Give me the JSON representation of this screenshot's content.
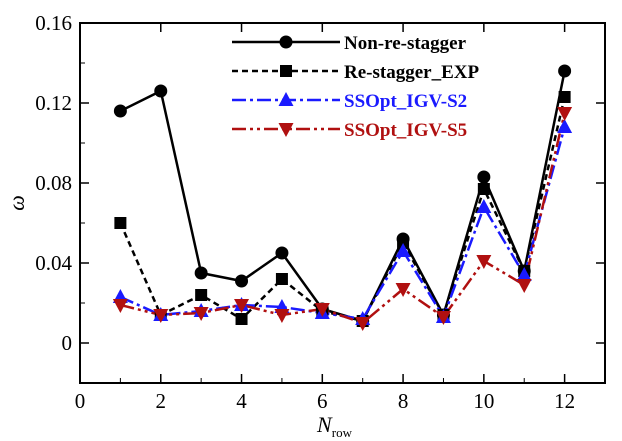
{
  "chart_data": {
    "type": "line",
    "title": "",
    "xlabel": "N",
    "xlabel_subscript": "row",
    "ylabel": "ω",
    "xlim": [
      0,
      13
    ],
    "ylim": [
      -0.02,
      0.16
    ],
    "xticks": [
      0,
      2,
      4,
      6,
      8,
      10,
      12
    ],
    "yticks": [
      0,
      0.04,
      0.08,
      0.12,
      0.16
    ],
    "xtick_labels": [
      "0",
      "2",
      "4",
      "6",
      "8",
      "10",
      "12"
    ],
    "ytick_labels": [
      "0",
      "0.04",
      "0.08",
      "0.12",
      "0.16"
    ],
    "grid": false,
    "legend_position": "top-right",
    "x": [
      1,
      2,
      3,
      4,
      5,
      6,
      7,
      8,
      9,
      10,
      11,
      12
    ],
    "series": [
      {
        "name": "Non-re-stagger",
        "values": [
          0.116,
          0.126,
          0.035,
          0.031,
          0.045,
          0.017,
          0.011,
          0.052,
          0.014,
          0.083,
          0.036,
          0.136
        ],
        "color": "#000000",
        "dash": "solid",
        "marker": "circle"
      },
      {
        "name": "Re-stagger_EXP",
        "values": [
          0.06,
          0.014,
          0.024,
          0.012,
          0.032,
          0.016,
          0.011,
          0.05,
          0.014,
          0.077,
          0.036,
          0.123
        ],
        "color": "#000000",
        "dash": "dashed",
        "marker": "square"
      },
      {
        "name": "SSOpt_IGV-S2",
        "values": [
          0.023,
          0.014,
          0.016,
          0.019,
          0.018,
          0.015,
          0.012,
          0.046,
          0.013,
          0.068,
          0.034,
          0.108
        ],
        "color": "#1a1aff",
        "dash": "dashdot",
        "marker": "triangle-up"
      },
      {
        "name": "SSOpt_IGV-S5",
        "values": [
          0.019,
          0.014,
          0.015,
          0.019,
          0.014,
          0.017,
          0.01,
          0.027,
          0.013,
          0.041,
          0.029,
          0.115
        ],
        "color": "#b01010",
        "dash": "dashdotdot",
        "marker": "triangle-down"
      }
    ]
  }
}
